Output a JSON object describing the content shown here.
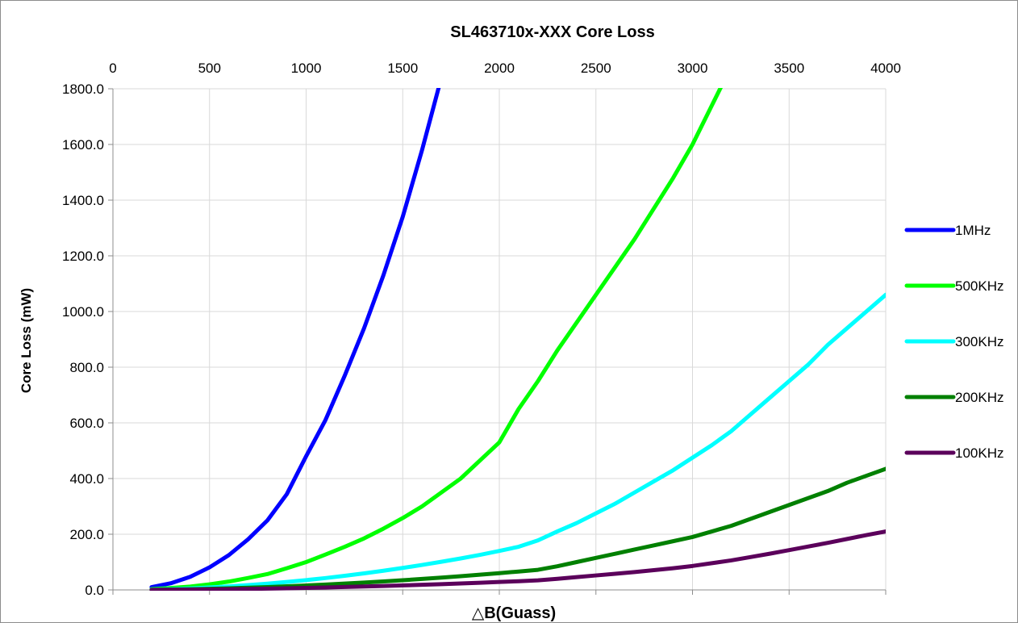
{
  "chart_data": {
    "type": "line",
    "title": "SL463710x-XXX Core Loss",
    "xlabel": "△B(Guass)",
    "ylabel": "Core Loss (mW)",
    "xlim": [
      0,
      4000
    ],
    "ylim": [
      0,
      1800
    ],
    "x_ticks": [
      "0",
      "500",
      "1000",
      "1500",
      "2000",
      "2500",
      "3000",
      "3500",
      "4000"
    ],
    "y_ticks": [
      "0.0",
      "200.0",
      "400.0",
      "600.0",
      "800.0",
      "1000.0",
      "1200.0",
      "1400.0",
      "1600.0",
      "1800.0"
    ],
    "x_axis_position": "top",
    "grid": true,
    "legend_position": "right",
    "x": [
      200,
      300,
      400,
      500,
      600,
      700,
      800,
      900,
      1000,
      1100,
      1200,
      1300,
      1400,
      1500,
      1600,
      1700,
      1800,
      1900,
      2000,
      2100,
      2200,
      2300,
      2400,
      2500,
      2600,
      2700,
      2800,
      2900,
      3000,
      3100,
      3200,
      3300,
      3400,
      3500,
      3600,
      3700,
      3800,
      3900,
      4000
    ],
    "series": [
      {
        "name": "1MHz",
        "color": "#0000ff",
        "values": [
          10,
          24,
          47,
          81,
          125,
          182,
          250,
          344,
          480,
          610,
          770,
          940,
          1130,
          1340,
          1580,
          1840,
          null,
          null,
          null,
          null,
          null,
          null,
          null,
          null,
          null,
          null,
          null,
          null,
          null,
          null,
          null,
          null,
          null,
          null,
          null,
          null,
          null,
          null,
          null
        ]
      },
      {
        "name": "500KHz",
        "color": "#00ff00",
        "values": [
          3,
          7,
          12,
          20,
          30,
          43,
          57,
          78,
          100,
          127,
          155,
          185,
          220,
          258,
          300,
          350,
          400,
          465,
          530,
          650,
          750,
          860,
          960,
          1060,
          1160,
          1260,
          1370,
          1480,
          1600,
          1740,
          1880,
          null,
          null,
          null,
          null,
          null,
          null,
          null,
          null
        ]
      },
      {
        "name": "300KHz",
        "color": "#00ffff",
        "values": [
          1.2,
          2.9,
          5.5,
          8.7,
          12.7,
          17.3,
          22.6,
          28.6,
          35.2,
          42.6,
          50.7,
          59.4,
          68.8,
          78.9,
          89.7,
          101,
          113,
          126,
          140,
          155,
          178,
          210,
          240,
          275,
          310,
          350,
          390,
          430,
          475,
          520,
          570,
          630,
          690,
          750,
          810,
          880,
          940,
          1000,
          1060
        ]
      },
      {
        "name": "200KHz",
        "color": "#008000",
        "values": [
          0.5,
          1.3,
          2.5,
          4.0,
          5.8,
          7.9,
          10.3,
          13.0,
          15.9,
          19.2,
          22.7,
          26.4,
          30.5,
          34.8,
          39.4,
          44.2,
          49.2,
          54.6,
          60.2,
          66.1,
          72.2,
          85,
          100,
          115,
          130,
          145,
          160,
          175,
          190,
          210,
          230,
          255,
          280,
          305,
          330,
          355,
          385,
          410,
          435
        ]
      },
      {
        "name": "100KHz",
        "color": "#5b005b",
        "values": [
          0.2,
          0.55,
          1.1,
          1.8,
          2.6,
          3.6,
          4.7,
          5.9,
          7.3,
          8.8,
          10.4,
          12.2,
          14.1,
          16.2,
          18.4,
          20.7,
          23.1,
          25.7,
          28.5,
          31.3,
          34.4,
          40,
          46,
          52,
          58,
          64,
          71,
          78,
          86,
          96,
          106,
          118,
          130,
          143,
          156,
          169,
          183,
          197,
          210
        ]
      }
    ]
  }
}
